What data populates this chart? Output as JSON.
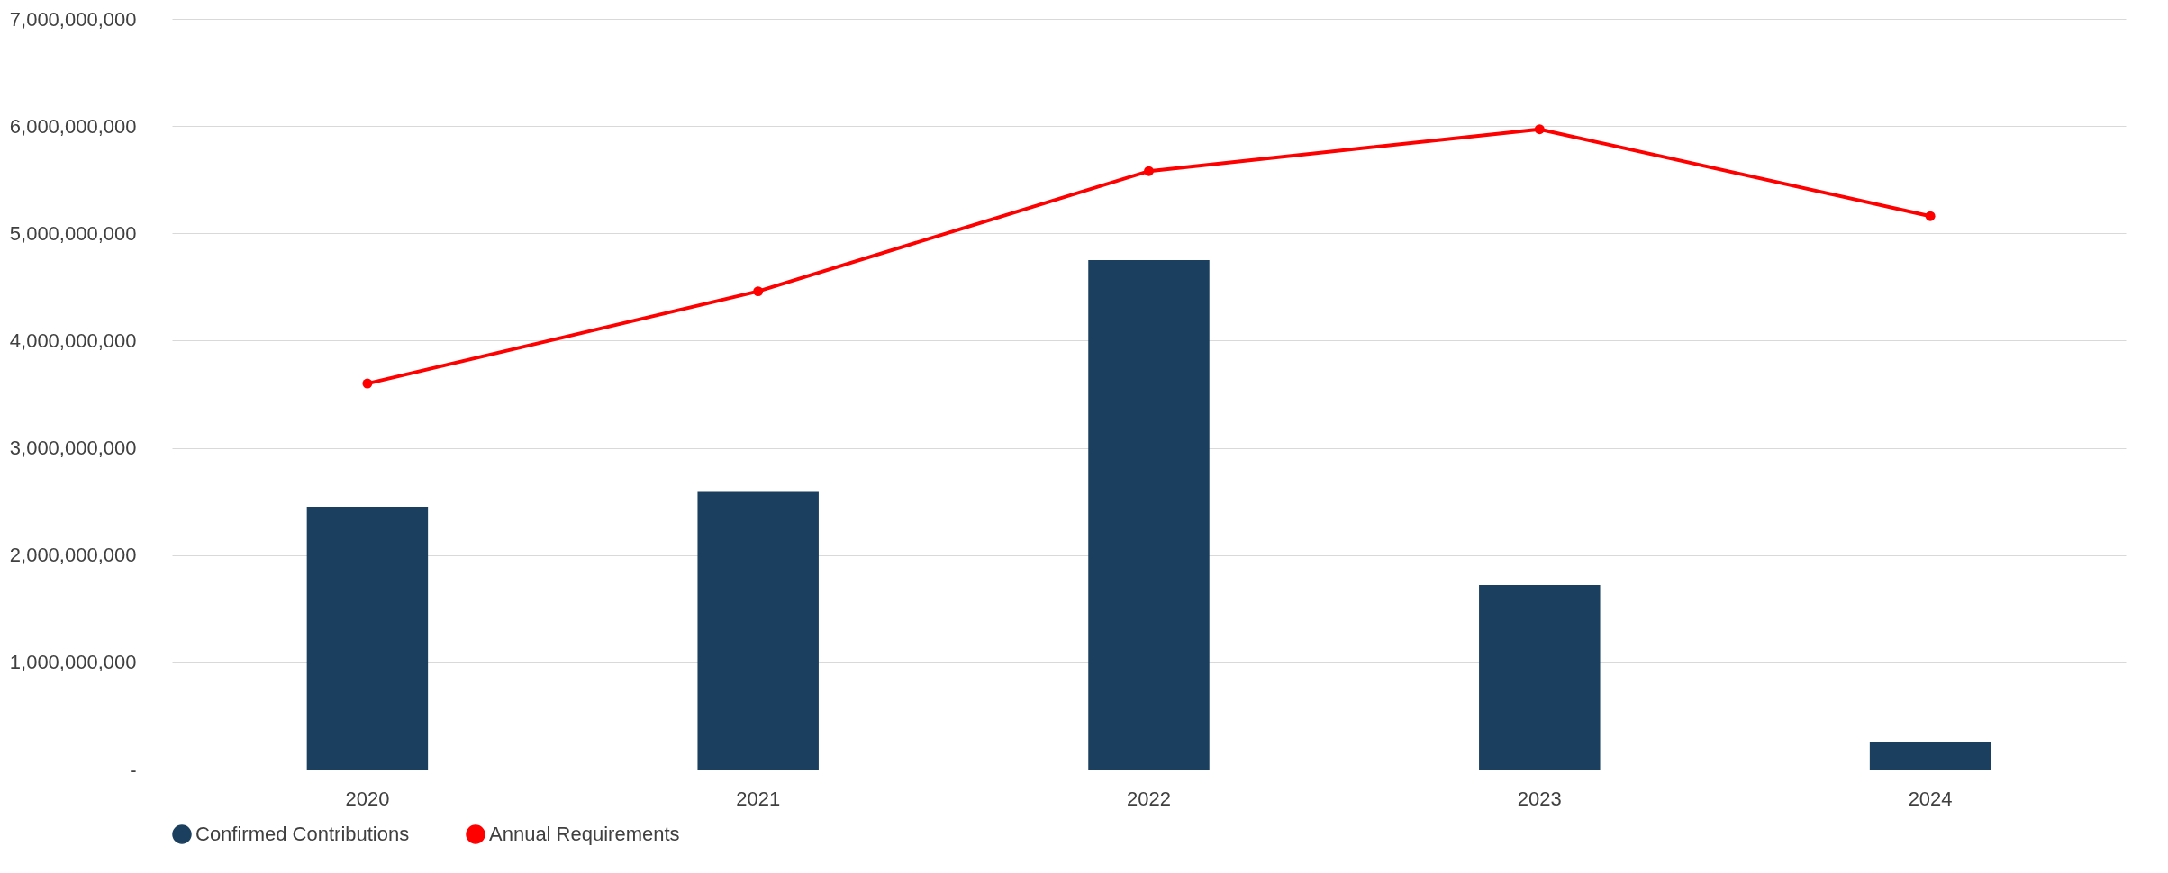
{
  "chart_data": {
    "type": "bar",
    "categories": [
      "2020",
      "2021",
      "2022",
      "2023",
      "2024"
    ],
    "series": [
      {
        "name": "Confirmed Contributions",
        "color": "#1b3f5e",
        "values": [
          2450000000,
          2590000000,
          4750000000,
          1720000000,
          260000000
        ]
      },
      {
        "name": "Annual Requirements",
        "type": "line",
        "color": "#ff0000",
        "marker": "circle",
        "values": [
          3600000000,
          4460000000,
          5580000000,
          5970000000,
          5160000000
        ]
      }
    ],
    "ylim": [
      0,
      7000000000
    ],
    "yticks": [
      {
        "value": 0,
        "label": "-"
      },
      {
        "value": 1000000000,
        "label": "1,000,000,000"
      },
      {
        "value": 2000000000,
        "label": "2,000,000,000"
      },
      {
        "value": 3000000000,
        "label": "3,000,000,000"
      },
      {
        "value": 4000000000,
        "label": "4,000,000,000"
      },
      {
        "value": 5000000000,
        "label": "5,000,000,000"
      },
      {
        "value": 6000000000,
        "label": "6,000,000,000"
      },
      {
        "value": 7000000000,
        "label": "7,000,000,000"
      }
    ],
    "grid": "y",
    "legend": "bottom"
  }
}
